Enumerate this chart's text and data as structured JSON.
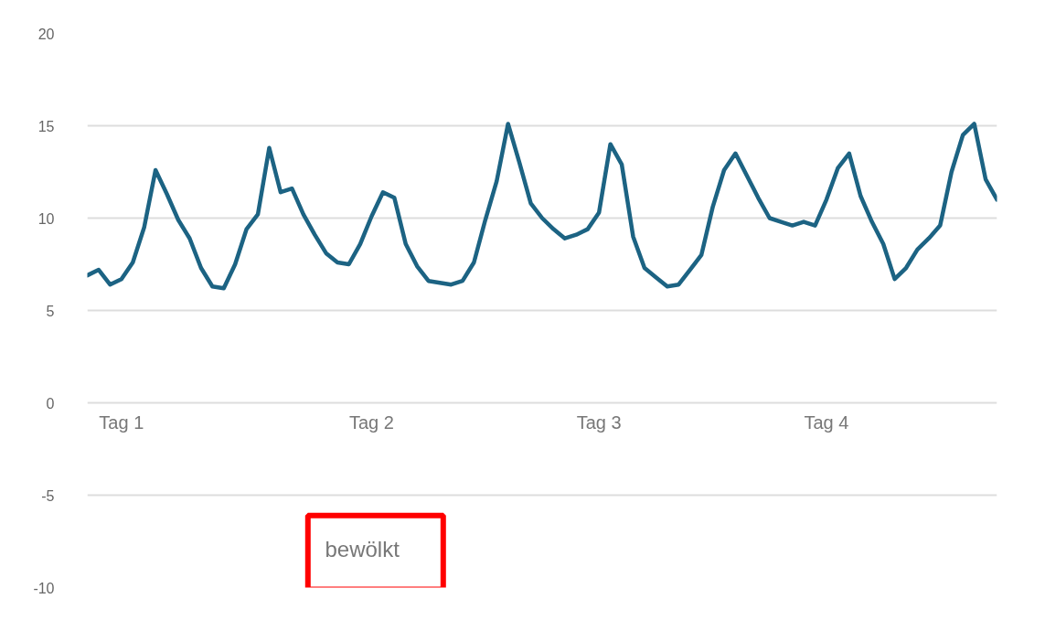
{
  "chart_data": {
    "type": "line",
    "categories": [
      null,
      null,
      null,
      "Tag 1",
      null,
      null,
      null,
      null,
      null,
      null,
      null,
      null,
      null,
      null,
      null,
      null,
      null,
      null,
      null,
      null,
      null,
      null,
      null,
      null,
      null,
      "Tag 2",
      null,
      null,
      null,
      null,
      null,
      null,
      null,
      null,
      null,
      null,
      null,
      null,
      null,
      null,
      null,
      null,
      null,
      null,
      null,
      "Tag 3",
      null,
      null,
      null,
      null,
      null,
      null,
      null,
      null,
      null,
      null,
      null,
      null,
      null,
      null,
      null,
      null,
      null,
      null,
      null,
      "Tag 4",
      null,
      null,
      null,
      null,
      null,
      null,
      null,
      null,
      null,
      null,
      null,
      null,
      null,
      null,
      null
    ],
    "series": [
      {
        "color": "#1c6383",
        "values": [
          6.9,
          7.2,
          6.4,
          6.7,
          7.6,
          9.5,
          12.6,
          11.3,
          9.9,
          8.9,
          7.3,
          6.3,
          6.2,
          7.5,
          9.4,
          10.2,
          13.8,
          11.4,
          11.6,
          10.2,
          9.1,
          8.1,
          7.6,
          7.5,
          8.6,
          10.1,
          11.4,
          11.1,
          8.6,
          7.4,
          6.6,
          6.5,
          6.4,
          6.6,
          7.6,
          9.9,
          12.0,
          15.1,
          13.0,
          10.8,
          10.0,
          9.4,
          8.9,
          9.1,
          9.4,
          10.3,
          14.0,
          12.9,
          9.0,
          7.3,
          6.8,
          6.3,
          6.4,
          7.2,
          8.0,
          10.6,
          12.6,
          13.5,
          12.3,
          11.1,
          10.0,
          9.8,
          9.6,
          9.8,
          9.6,
          11.0,
          12.7,
          13.5,
          11.2,
          9.8,
          8.6,
          6.7,
          7.3,
          8.3,
          8.9,
          9.6,
          12.5,
          14.5,
          15.1,
          12.1,
          11.0
        ]
      }
    ],
    "ylim": [
      -10,
      20
    ],
    "yticks": [
      -10,
      -5,
      0,
      5,
      10,
      15,
      20
    ],
    "grid": "y",
    "annotations": [
      "bewölkt"
    ]
  }
}
